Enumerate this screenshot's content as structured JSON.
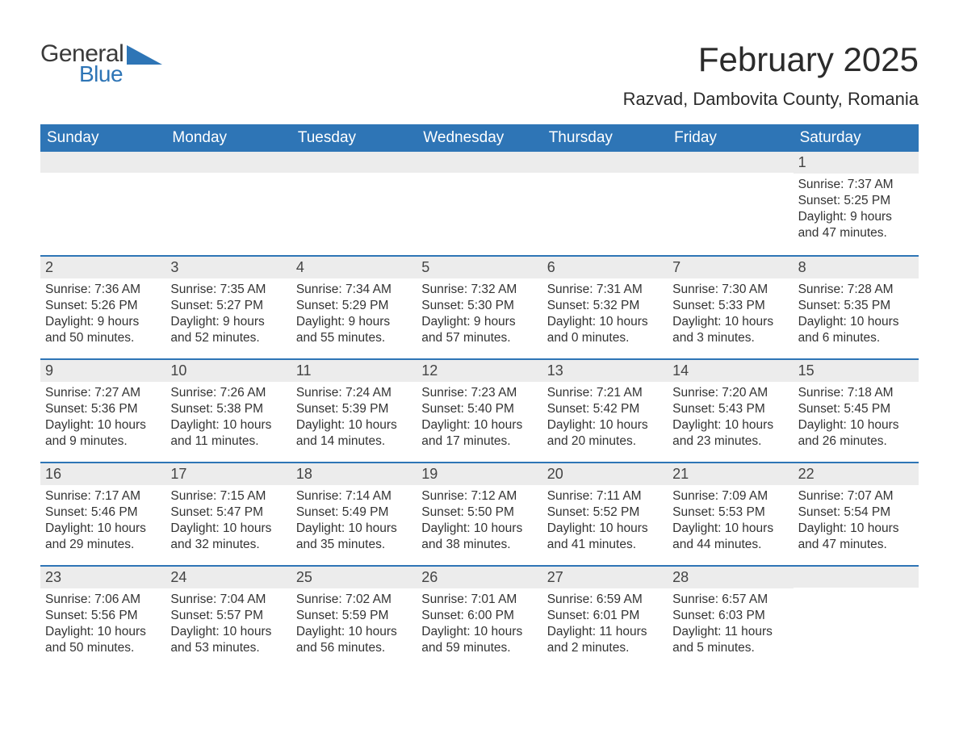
{
  "logo": {
    "word1": "General",
    "word2": "Blue",
    "accent_color": "#2e75b6"
  },
  "header": {
    "month_title": "February 2025",
    "location": "Razvad, Dambovita County, Romania"
  },
  "colors": {
    "header_bg": "#2e75b6",
    "header_text": "#ffffff",
    "band_bg": "#ececec",
    "border": "#2e75b6",
    "body_text": "#333333",
    "page_bg": "#ffffff"
  },
  "weekdays": [
    "Sunday",
    "Monday",
    "Tuesday",
    "Wednesday",
    "Thursday",
    "Friday",
    "Saturday"
  ],
  "weeks": [
    [
      null,
      null,
      null,
      null,
      null,
      null,
      {
        "n": "1",
        "sunrise": "Sunrise: 7:37 AM",
        "sunset": "Sunset: 5:25 PM",
        "daylight": "Daylight: 9 hours and 47 minutes."
      }
    ],
    [
      {
        "n": "2",
        "sunrise": "Sunrise: 7:36 AM",
        "sunset": "Sunset: 5:26 PM",
        "daylight": "Daylight: 9 hours and 50 minutes."
      },
      {
        "n": "3",
        "sunrise": "Sunrise: 7:35 AM",
        "sunset": "Sunset: 5:27 PM",
        "daylight": "Daylight: 9 hours and 52 minutes."
      },
      {
        "n": "4",
        "sunrise": "Sunrise: 7:34 AM",
        "sunset": "Sunset: 5:29 PM",
        "daylight": "Daylight: 9 hours and 55 minutes."
      },
      {
        "n": "5",
        "sunrise": "Sunrise: 7:32 AM",
        "sunset": "Sunset: 5:30 PM",
        "daylight": "Daylight: 9 hours and 57 minutes."
      },
      {
        "n": "6",
        "sunrise": "Sunrise: 7:31 AM",
        "sunset": "Sunset: 5:32 PM",
        "daylight": "Daylight: 10 hours and 0 minutes."
      },
      {
        "n": "7",
        "sunrise": "Sunrise: 7:30 AM",
        "sunset": "Sunset: 5:33 PM",
        "daylight": "Daylight: 10 hours and 3 minutes."
      },
      {
        "n": "8",
        "sunrise": "Sunrise: 7:28 AM",
        "sunset": "Sunset: 5:35 PM",
        "daylight": "Daylight: 10 hours and 6 minutes."
      }
    ],
    [
      {
        "n": "9",
        "sunrise": "Sunrise: 7:27 AM",
        "sunset": "Sunset: 5:36 PM",
        "daylight": "Daylight: 10 hours and 9 minutes."
      },
      {
        "n": "10",
        "sunrise": "Sunrise: 7:26 AM",
        "sunset": "Sunset: 5:38 PM",
        "daylight": "Daylight: 10 hours and 11 minutes."
      },
      {
        "n": "11",
        "sunrise": "Sunrise: 7:24 AM",
        "sunset": "Sunset: 5:39 PM",
        "daylight": "Daylight: 10 hours and 14 minutes."
      },
      {
        "n": "12",
        "sunrise": "Sunrise: 7:23 AM",
        "sunset": "Sunset: 5:40 PM",
        "daylight": "Daylight: 10 hours and 17 minutes."
      },
      {
        "n": "13",
        "sunrise": "Sunrise: 7:21 AM",
        "sunset": "Sunset: 5:42 PM",
        "daylight": "Daylight: 10 hours and 20 minutes."
      },
      {
        "n": "14",
        "sunrise": "Sunrise: 7:20 AM",
        "sunset": "Sunset: 5:43 PM",
        "daylight": "Daylight: 10 hours and 23 minutes."
      },
      {
        "n": "15",
        "sunrise": "Sunrise: 7:18 AM",
        "sunset": "Sunset: 5:45 PM",
        "daylight": "Daylight: 10 hours and 26 minutes."
      }
    ],
    [
      {
        "n": "16",
        "sunrise": "Sunrise: 7:17 AM",
        "sunset": "Sunset: 5:46 PM",
        "daylight": "Daylight: 10 hours and 29 minutes."
      },
      {
        "n": "17",
        "sunrise": "Sunrise: 7:15 AM",
        "sunset": "Sunset: 5:47 PM",
        "daylight": "Daylight: 10 hours and 32 minutes."
      },
      {
        "n": "18",
        "sunrise": "Sunrise: 7:14 AM",
        "sunset": "Sunset: 5:49 PM",
        "daylight": "Daylight: 10 hours and 35 minutes."
      },
      {
        "n": "19",
        "sunrise": "Sunrise: 7:12 AM",
        "sunset": "Sunset: 5:50 PM",
        "daylight": "Daylight: 10 hours and 38 minutes."
      },
      {
        "n": "20",
        "sunrise": "Sunrise: 7:11 AM",
        "sunset": "Sunset: 5:52 PM",
        "daylight": "Daylight: 10 hours and 41 minutes."
      },
      {
        "n": "21",
        "sunrise": "Sunrise: 7:09 AM",
        "sunset": "Sunset: 5:53 PM",
        "daylight": "Daylight: 10 hours and 44 minutes."
      },
      {
        "n": "22",
        "sunrise": "Sunrise: 7:07 AM",
        "sunset": "Sunset: 5:54 PM",
        "daylight": "Daylight: 10 hours and 47 minutes."
      }
    ],
    [
      {
        "n": "23",
        "sunrise": "Sunrise: 7:06 AM",
        "sunset": "Sunset: 5:56 PM",
        "daylight": "Daylight: 10 hours and 50 minutes."
      },
      {
        "n": "24",
        "sunrise": "Sunrise: 7:04 AM",
        "sunset": "Sunset: 5:57 PM",
        "daylight": "Daylight: 10 hours and 53 minutes."
      },
      {
        "n": "25",
        "sunrise": "Sunrise: 7:02 AM",
        "sunset": "Sunset: 5:59 PM",
        "daylight": "Daylight: 10 hours and 56 minutes."
      },
      {
        "n": "26",
        "sunrise": "Sunrise: 7:01 AM",
        "sunset": "Sunset: 6:00 PM",
        "daylight": "Daylight: 10 hours and 59 minutes."
      },
      {
        "n": "27",
        "sunrise": "Sunrise: 6:59 AM",
        "sunset": "Sunset: 6:01 PM",
        "daylight": "Daylight: 11 hours and 2 minutes."
      },
      {
        "n": "28",
        "sunrise": "Sunrise: 6:57 AM",
        "sunset": "Sunset: 6:03 PM",
        "daylight": "Daylight: 11 hours and 5 minutes."
      },
      null
    ]
  ]
}
